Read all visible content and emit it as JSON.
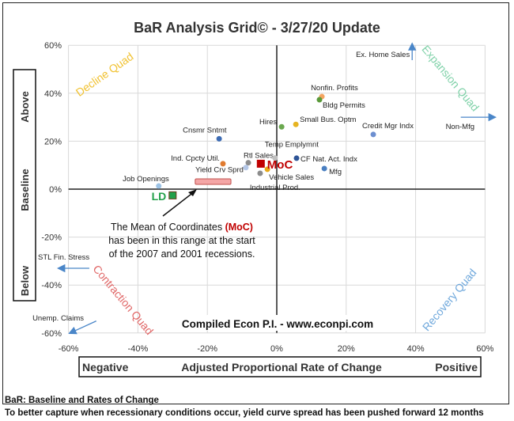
{
  "chart_data": {
    "type": "scatter",
    "title": "BaR Analysis Grid© - 3/27/20 Update",
    "xlim": [
      -60,
      60
    ],
    "ylim": [
      -60,
      60
    ],
    "x_ticks": [
      "-60%",
      "-40%",
      "-20%",
      "0%",
      "20%",
      "40%",
      "60%"
    ],
    "y_ticks": [
      "60%",
      "40%",
      "20%",
      "0%",
      "-20%",
      "-40%",
      "-60%"
    ],
    "tick_values": [
      -60,
      -40,
      -20,
      0,
      20,
      40,
      60
    ],
    "grid": true,
    "xlabel": {
      "left": "Negative",
      "center": "Adjusted Proportional Rate of Change",
      "right": "Positive"
    },
    "ylabel": {
      "top": "Above",
      "middle": "Baseline",
      "bottom": "Below"
    },
    "quadrants": {
      "top_left": "Decline Quad",
      "top_right": "Expansion Quad",
      "bottom_left": "Contraction Quad",
      "bottom_right": "Recovery Quad"
    },
    "points": [
      {
        "label": "Nonfin. Profits",
        "x": 13,
        "y": 38.6,
        "color": "#f4a460"
      },
      {
        "label": "Bldg Permits",
        "x": 12.3,
        "y": 37.3,
        "color": "#5a9a3a"
      },
      {
        "label": "Hires",
        "x": 1.4,
        "y": 26,
        "color": "#6aa84f"
      },
      {
        "label": "Small Bus. Optm",
        "x": 5.5,
        "y": 27,
        "color": "#e6b422"
      },
      {
        "label": "Credit Mgr Indx",
        "x": 27.8,
        "y": 22.8,
        "color": "#6d8fd0"
      },
      {
        "label": "Cnsmr Sntmt",
        "x": -16.6,
        "y": 21,
        "color": "#3d6cb4"
      },
      {
        "label": "Ind. Cpcty Util.",
        "x": -15.5,
        "y": 10.6,
        "color": "#e07b30"
      },
      {
        "label": "Rtl Sales",
        "x": -8.2,
        "y": 11,
        "color": "#8c8c8c"
      },
      {
        "label": "Yield Crv Sprd",
        "x": -8.9,
        "y": 9,
        "color": "#b4c7e7"
      },
      {
        "label": "Temp Emplymnt",
        "x": -0.5,
        "y": 13,
        "color": "#c0c0c0"
      },
      {
        "label": "CF Nat. Act. Indx",
        "x": 5.7,
        "y": 12.9,
        "color": "#2f5597"
      },
      {
        "label": "Mfg",
        "x": 13.7,
        "y": 8.6,
        "color": "#4a7fc1"
      },
      {
        "label": "Vehicle Sales",
        "x": -2.7,
        "y": 8.3,
        "color": "#e6a817"
      },
      {
        "label": "Industrial Prod.",
        "x": -4.8,
        "y": 6.6,
        "color": "#8c8c8c"
      },
      {
        "label": "Job Openings",
        "x": -34,
        "y": 1.3,
        "color": "#9dc3e6"
      }
    ],
    "offscale": [
      {
        "label": "Ex. Home Sales",
        "direction": "up",
        "x": 39,
        "y": 60
      },
      {
        "label": "Non-Mfg",
        "direction": "right",
        "x": 60,
        "y": 30
      },
      {
        "label": "STL Fin. Stress",
        "direction": "left",
        "x": -60,
        "y": -33
      },
      {
        "label": "Unemp. Claims",
        "direction": "down-left",
        "x": -60,
        "y": -60
      }
    ],
    "moc": {
      "label": "MoC",
      "x": -4.6,
      "y": 10.6,
      "color": "#c00000"
    },
    "ld": {
      "label": "LD",
      "x": -30,
      "y": -2.6,
      "color": "#22a04a"
    },
    "recession_range": {
      "x": [
        -23.5,
        -13.2
      ],
      "y": [
        2,
        4.3
      ],
      "color": "#f4a6a6"
    },
    "annotation": {
      "line1": "The Mean of Coordinates ",
      "moc": "(MoC)",
      "line2": "has been in this range at the start",
      "line3": "of the 2007 and 2001 recessions."
    },
    "credit": "Compiled Econ P.I. - www.econpi.com"
  },
  "footer": {
    "line1": "BaR: Baseline and Rates of Change",
    "line2": "To better capture when recessionary conditions occur, yield curve spread has been pushed forward 12 months"
  }
}
